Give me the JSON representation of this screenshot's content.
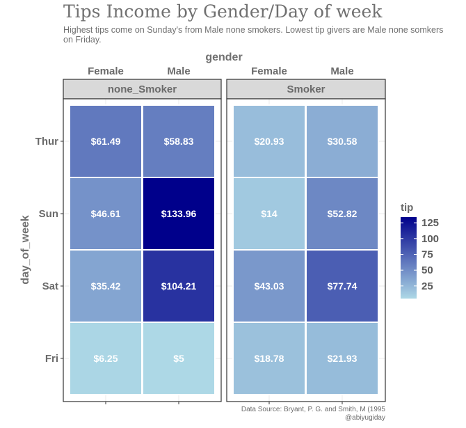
{
  "chart_data": {
    "type": "heatmap",
    "title": "Tips Income by Gender/Day of week",
    "subtitle": "Highest tips come on Sunday's from Male none smokers. Lowest tip givers are Male none somkers on Friday.",
    "caption_line1": "Data Source: Bryant, P. G. and Smith, M (1995",
    "caption_line2": "@abiyugiday",
    "x_axis_title": "gender",
    "y_axis_title": "day_of_week",
    "x_categories": [
      "Female",
      "Male"
    ],
    "y_categories": [
      "Thur",
      "Sun",
      "Sat",
      "Fri"
    ],
    "facets": [
      {
        "label": "none_Smoker",
        "cells": [
          {
            "day": "Thur",
            "gender": "Female",
            "value": 61.49,
            "label": "$61.49"
          },
          {
            "day": "Thur",
            "gender": "Male",
            "value": 58.83,
            "label": "$58.83"
          },
          {
            "day": "Sun",
            "gender": "Female",
            "value": 46.61,
            "label": "$46.61"
          },
          {
            "day": "Sun",
            "gender": "Male",
            "value": 133.96,
            "label": "$133.96"
          },
          {
            "day": "Sat",
            "gender": "Female",
            "value": 35.42,
            "label": "$35.42"
          },
          {
            "day": "Sat",
            "gender": "Male",
            "value": 104.21,
            "label": "$104.21"
          },
          {
            "day": "Fri",
            "gender": "Female",
            "value": 6.25,
            "label": "$6.25"
          },
          {
            "day": "Fri",
            "gender": "Male",
            "value": 5,
            "label": "$5"
          }
        ]
      },
      {
        "label": "Smoker",
        "cells": [
          {
            "day": "Thur",
            "gender": "Female",
            "value": 20.93,
            "label": "$20.93"
          },
          {
            "day": "Thur",
            "gender": "Male",
            "value": 30.58,
            "label": "$30.58"
          },
          {
            "day": "Sun",
            "gender": "Female",
            "value": 14,
            "label": "$14"
          },
          {
            "day": "Sun",
            "gender": "Male",
            "value": 52.82,
            "label": "$52.82"
          },
          {
            "day": "Sat",
            "gender": "Female",
            "value": 43.03,
            "label": "$43.03"
          },
          {
            "day": "Sat",
            "gender": "Male",
            "value": 77.74,
            "label": "$77.74"
          },
          {
            "day": "Fri",
            "gender": "Female",
            "value": 18.78,
            "label": "$18.78"
          },
          {
            "day": "Fri",
            "gender": "Male",
            "value": 21.93,
            "label": "$21.93"
          }
        ]
      }
    ],
    "legend": {
      "title": "tip",
      "placement": "right",
      "breaks": [
        125,
        100,
        75,
        50,
        25
      ],
      "range": [
        5,
        133.96
      ],
      "low_color": "#add8e6",
      "high_color": "#00008b"
    },
    "grid": true
  }
}
